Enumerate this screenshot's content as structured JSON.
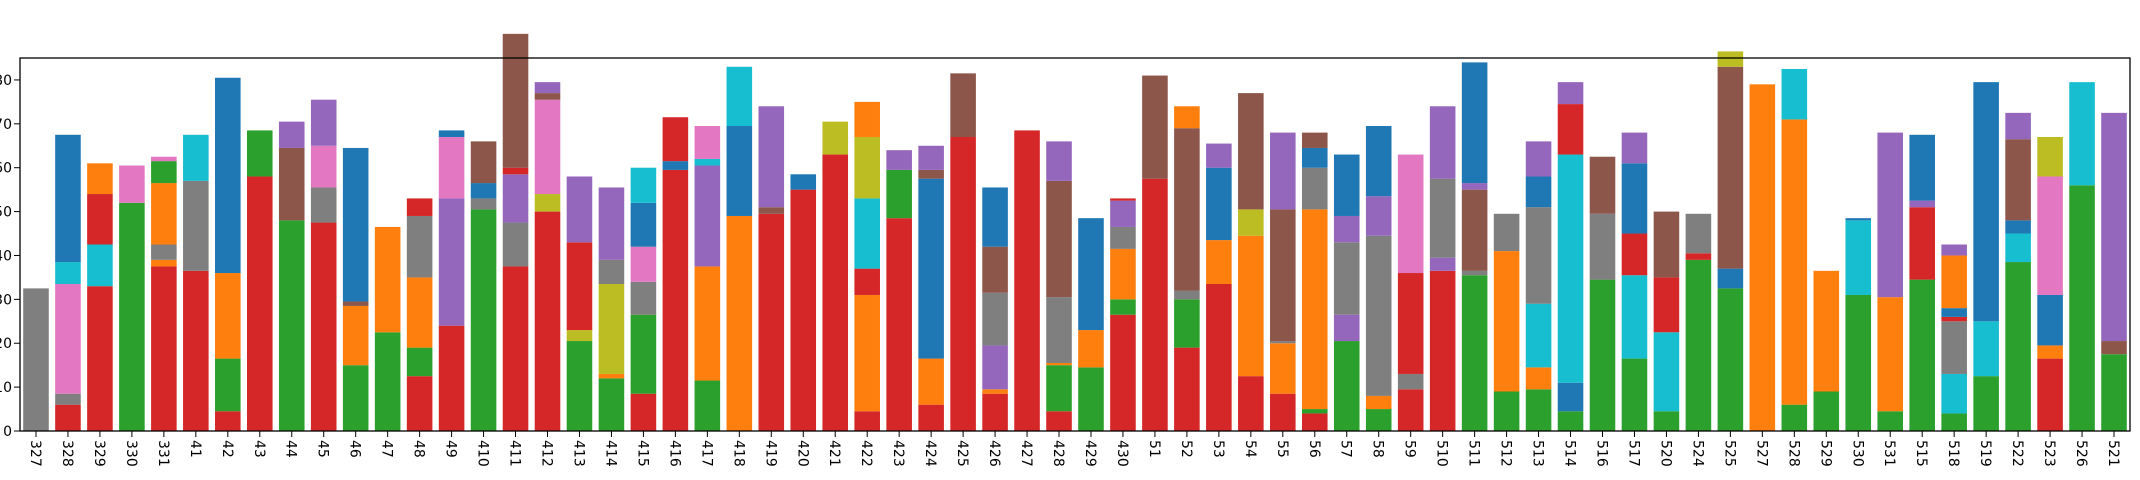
{
  "chart_data": {
    "type": "bar",
    "stacked": true,
    "title": "",
    "xlabel": "",
    "ylabel": "",
    "ylim": [
      0,
      85
    ],
    "y_tick_values": [
      0,
      10,
      20,
      30,
      40,
      50,
      60,
      70,
      80
    ],
    "categories": [
      "327",
      "328",
      "329",
      "330",
      "331",
      "41",
      "42",
      "43",
      "44",
      "45",
      "46",
      "47",
      "48",
      "49",
      "410",
      "411",
      "412",
      "413",
      "414",
      "415",
      "416",
      "417",
      "418",
      "419",
      "420",
      "421",
      "422",
      "423",
      "424",
      "425",
      "426",
      "427",
      "428",
      "429",
      "430",
      "51",
      "52",
      "53",
      "54",
      "55",
      "56",
      "57",
      "58",
      "59",
      "510",
      "511",
      "512",
      "513",
      "514",
      "516",
      "517",
      "520",
      "524",
      "525",
      "527",
      "528",
      "529",
      "530",
      "531",
      "515",
      "518",
      "519",
      "522",
      "523",
      "526",
      "521"
    ],
    "palette": {
      "green": "#2ca02c",
      "red": "#d62728",
      "orange": "#ff7f0e",
      "blue": "#1f77b4",
      "cyan": "#17becf",
      "purple": "#9467bd",
      "brown": "#8c564b",
      "pink": "#e377c2",
      "gray": "#7f7f7f",
      "olive": "#bcbd22"
    },
    "stacks": [
      [
        [
          "gray",
          32.5
        ]
      ],
      [
        [
          "red",
          6
        ],
        [
          "gray",
          2.5
        ],
        [
          "pink",
          25
        ],
        [
          "cyan",
          5
        ],
        [
          "blue",
          29
        ]
      ],
      [
        [
          "red",
          33
        ],
        [
          "cyan",
          9.5
        ],
        [
          "red",
          11.5
        ],
        [
          "orange",
          7
        ]
      ],
      [
        [
          "green",
          52
        ],
        [
          "pink",
          8.5
        ]
      ],
      [
        [
          "red",
          37.5
        ],
        [
          "orange",
          1.5
        ],
        [
          "gray",
          3.5
        ],
        [
          "orange",
          14
        ],
        [
          "green",
          5
        ],
        [
          "pink",
          1
        ]
      ],
      [
        [
          "red",
          36.5
        ],
        [
          "gray",
          20.5
        ],
        [
          "cyan",
          10.5
        ]
      ],
      [
        [
          "red",
          4.5
        ],
        [
          "green",
          12
        ],
        [
          "orange",
          19.5
        ],
        [
          "blue",
          44.5
        ]
      ],
      [
        [
          "red",
          58
        ],
        [
          "green",
          10.5
        ]
      ],
      [
        [
          "green",
          48
        ],
        [
          "brown",
          16.5
        ],
        [
          "purple",
          6
        ]
      ],
      [
        [
          "red",
          47.5
        ],
        [
          "gray",
          8
        ],
        [
          "pink",
          9.5
        ],
        [
          "purple",
          10.5
        ]
      ],
      [
        [
          "green",
          15
        ],
        [
          "orange",
          13.5
        ],
        [
          "brown",
          1
        ],
        [
          "blue",
          35
        ]
      ],
      [
        [
          "green",
          22.5
        ],
        [
          "orange",
          24
        ]
      ],
      [
        [
          "red",
          12.5
        ],
        [
          "green",
          6.5
        ],
        [
          "orange",
          16
        ],
        [
          "gray",
          14
        ],
        [
          "red",
          4
        ]
      ],
      [
        [
          "red",
          24
        ],
        [
          "purple",
          29
        ],
        [
          "pink",
          14
        ],
        [
          "blue",
          1.5
        ]
      ],
      [
        [
          "green",
          50.5
        ],
        [
          "gray",
          2.5
        ],
        [
          "blue",
          3.5
        ],
        [
          "brown",
          9.5
        ]
      ],
      [
        [
          "red",
          37.5
        ],
        [
          "gray",
          10
        ],
        [
          "purple",
          11
        ],
        [
          "red",
          1.5
        ],
        [
          "brown",
          30.5
        ]
      ],
      [
        [
          "red",
          50
        ],
        [
          "olive",
          4
        ],
        [
          "pink",
          21.5
        ],
        [
          "brown",
          1.5
        ],
        [
          "purple",
          2.5
        ]
      ],
      [
        [
          "green",
          20.5
        ],
        [
          "olive",
          2.5
        ],
        [
          "red",
          20
        ],
        [
          "purple",
          15
        ]
      ],
      [
        [
          "green",
          12
        ],
        [
          "orange",
          1
        ],
        [
          "olive",
          20.5
        ],
        [
          "gray",
          5.5
        ],
        [
          "purple",
          16.5
        ]
      ],
      [
        [
          "red",
          8.5
        ],
        [
          "green",
          18
        ],
        [
          "gray",
          7.5
        ],
        [
          "pink",
          8
        ],
        [
          "blue",
          10
        ],
        [
          "cyan",
          8
        ]
      ],
      [
        [
          "red",
          59.5
        ],
        [
          "blue",
          2
        ],
        [
          "red",
          10
        ]
      ],
      [
        [
          "green",
          11.5
        ],
        [
          "orange",
          26
        ],
        [
          "purple",
          23
        ],
        [
          "cyan",
          1.5
        ],
        [
          "pink",
          7.5
        ]
      ],
      [
        [
          "orange",
          49
        ],
        [
          "blue",
          20.5
        ],
        [
          "cyan",
          13.5
        ]
      ],
      [
        [
          "red",
          49.5
        ],
        [
          "brown",
          1.5
        ],
        [
          "purple",
          23
        ]
      ],
      [
        [
          "red",
          55
        ],
        [
          "blue",
          3.5
        ]
      ],
      [
        [
          "red",
          63
        ],
        [
          "olive",
          7.5
        ]
      ],
      [
        [
          "red",
          4.5
        ],
        [
          "orange",
          26.5
        ],
        [
          "red",
          6
        ],
        [
          "cyan",
          16
        ],
        [
          "olive",
          14
        ],
        [
          "orange",
          8
        ]
      ],
      [
        [
          "red",
          48.5
        ],
        [
          "green",
          11
        ],
        [
          "purple",
          4.5
        ]
      ],
      [
        [
          "red",
          6
        ],
        [
          "orange",
          10.5
        ],
        [
          "blue",
          41
        ],
        [
          "brown",
          2
        ],
        [
          "purple",
          5.5
        ]
      ],
      [
        [
          "red",
          67
        ],
        [
          "brown",
          14.5
        ]
      ],
      [
        [
          "red",
          8.5
        ],
        [
          "orange",
          1
        ],
        [
          "purple",
          10
        ],
        [
          "gray",
          12
        ],
        [
          "brown",
          10.5
        ],
        [
          "blue",
          13.5
        ]
      ],
      [
        [
          "red",
          68.5
        ]
      ],
      [
        [
          "red",
          4.5
        ],
        [
          "green",
          10.5
        ],
        [
          "orange",
          0.5
        ],
        [
          "gray",
          15
        ],
        [
          "brown",
          26.5
        ],
        [
          "purple",
          9
        ]
      ],
      [
        [
          "green",
          14.5
        ],
        [
          "orange",
          8.5
        ],
        [
          "blue",
          25.5
        ]
      ],
      [
        [
          "red",
          26.5
        ],
        [
          "green",
          3.5
        ],
        [
          "orange",
          11.5
        ],
        [
          "gray",
          5
        ],
        [
          "purple",
          6
        ],
        [
          "red",
          0.5
        ]
      ],
      [
        [
          "red",
          57.5
        ],
        [
          "brown",
          23.5
        ]
      ],
      [
        [
          "red",
          19
        ],
        [
          "green",
          11
        ],
        [
          "gray",
          2
        ],
        [
          "brown",
          37
        ],
        [
          "orange",
          5
        ]
      ],
      [
        [
          "red",
          33.5
        ],
        [
          "orange",
          10
        ],
        [
          "blue",
          16.5
        ],
        [
          "purple",
          5.5
        ]
      ],
      [
        [
          "red",
          12.5
        ],
        [
          "orange",
          32
        ],
        [
          "olive",
          6
        ],
        [
          "brown",
          26.5
        ]
      ],
      [
        [
          "red",
          8.5
        ],
        [
          "orange",
          11.5
        ],
        [
          "gray",
          0.5
        ],
        [
          "brown",
          30
        ],
        [
          "purple",
          17.5
        ]
      ],
      [
        [
          "red",
          4
        ],
        [
          "green",
          1
        ],
        [
          "orange",
          45.5
        ],
        [
          "gray",
          9.5
        ],
        [
          "blue",
          4.5
        ],
        [
          "brown",
          3.5
        ]
      ],
      [
        [
          "green",
          20.5
        ],
        [
          "purple",
          6
        ],
        [
          "gray",
          16.5
        ],
        [
          "purple",
          6
        ],
        [
          "blue",
          14
        ]
      ],
      [
        [
          "green",
          5
        ],
        [
          "orange",
          3
        ],
        [
          "gray",
          36.5
        ],
        [
          "purple",
          9
        ],
        [
          "blue",
          16
        ]
      ],
      [
        [
          "red",
          9.5
        ],
        [
          "gray",
          3.5
        ],
        [
          "red",
          23
        ],
        [
          "pink",
          27
        ]
      ],
      [
        [
          "red",
          36.5
        ],
        [
          "purple",
          3
        ],
        [
          "gray",
          18
        ],
        [
          "purple",
          16.5
        ]
      ],
      [
        [
          "green",
          35.5
        ],
        [
          "gray",
          1
        ],
        [
          "brown",
          18.5
        ],
        [
          "purple",
          1.5
        ],
        [
          "blue",
          27.5
        ]
      ],
      [
        [
          "green",
          9
        ],
        [
          "orange",
          32
        ],
        [
          "gray",
          8.5
        ]
      ],
      [
        [
          "green",
          9.5
        ],
        [
          "orange",
          5
        ],
        [
          "cyan",
          14.5
        ],
        [
          "gray",
          22
        ],
        [
          "blue",
          7
        ],
        [
          "purple",
          8
        ]
      ],
      [
        [
          "green",
          4.5
        ],
        [
          "blue",
          6.5
        ],
        [
          "cyan",
          52
        ],
        [
          "red",
          11.5
        ],
        [
          "purple",
          5
        ]
      ],
      [
        [
          "green",
          34.5
        ],
        [
          "gray",
          15
        ],
        [
          "brown",
          13
        ]
      ],
      [
        [
          "green",
          16.5
        ],
        [
          "cyan",
          19
        ],
        [
          "red",
          9.5
        ],
        [
          "blue",
          16
        ],
        [
          "purple",
          7
        ]
      ],
      [
        [
          "green",
          4.5
        ],
        [
          "cyan",
          18
        ],
        [
          "red",
          12.5
        ],
        [
          "brown",
          15
        ]
      ],
      [
        [
          "green",
          39
        ],
        [
          "red",
          1.5
        ],
        [
          "gray",
          9
        ]
      ],
      [
        [
          "green",
          32.5
        ],
        [
          "blue",
          4.5
        ],
        [
          "brown",
          46
        ],
        [
          "olive",
          3.5
        ]
      ],
      [
        [
          "orange",
          79
        ]
      ],
      [
        [
          "green",
          6
        ],
        [
          "orange",
          65
        ],
        [
          "cyan",
          11.5
        ]
      ],
      [
        [
          "green",
          9
        ],
        [
          "orange",
          27.5
        ]
      ],
      [
        [
          "green",
          31
        ],
        [
          "cyan",
          17
        ],
        [
          "blue",
          0.5
        ]
      ],
      [
        [
          "green",
          4.5
        ],
        [
          "orange",
          26
        ],
        [
          "purple",
          37.5
        ]
      ],
      [
        [
          "green",
          34.5
        ],
        [
          "red",
          16.5
        ],
        [
          "purple",
          1.5
        ],
        [
          "blue",
          15
        ]
      ],
      [
        [
          "green",
          4
        ],
        [
          "cyan",
          9
        ],
        [
          "gray",
          12
        ],
        [
          "red",
          1
        ],
        [
          "blue",
          2
        ],
        [
          "orange",
          12
        ],
        [
          "purple",
          2.5
        ]
      ],
      [
        [
          "green",
          12.5
        ],
        [
          "cyan",
          12.5
        ],
        [
          "blue",
          54.5
        ]
      ],
      [
        [
          "green",
          38.5
        ],
        [
          "cyan",
          6.5
        ],
        [
          "blue",
          3
        ],
        [
          "brown",
          18.5
        ],
        [
          "purple",
          6
        ]
      ],
      [
        [
          "red",
          16.5
        ],
        [
          "orange",
          3
        ],
        [
          "blue",
          11.5
        ],
        [
          "pink",
          27
        ],
        [
          "olive",
          9
        ]
      ],
      [
        [
          "green",
          56
        ],
        [
          "cyan",
          23.5
        ]
      ],
      [
        [
          "green",
          17.5
        ],
        [
          "brown",
          3
        ],
        [
          "purple",
          52
        ]
      ]
    ]
  }
}
